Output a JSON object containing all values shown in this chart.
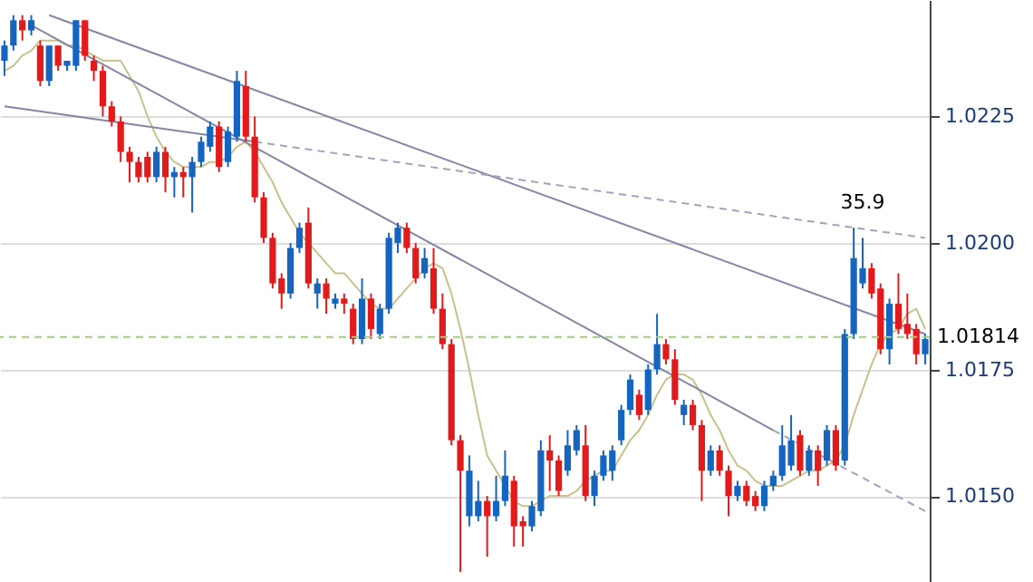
{
  "chart_data": {
    "type": "candlestick",
    "categories": [
      null,
      null,
      null,
      null,
      null,
      null,
      null,
      null,
      null,
      null,
      null,
      null,
      null,
      null,
      null,
      null,
      null,
      null,
      null,
      null,
      null,
      null,
      null,
      null,
      null,
      null,
      null,
      null,
      null,
      null,
      null,
      null,
      null,
      null,
      null,
      null,
      null,
      null,
      null,
      null,
      null,
      null,
      null,
      null,
      null,
      null,
      null,
      null,
      null,
      null,
      null,
      null,
      null,
      null,
      null,
      null,
      null,
      null,
      null,
      null,
      null,
      null,
      null,
      null,
      null,
      null,
      null,
      null,
      null,
      null,
      null,
      null,
      null,
      null,
      null,
      null,
      null,
      null,
      null,
      null,
      null,
      null,
      null,
      null,
      null,
      null,
      null,
      null,
      null,
      null,
      null,
      null,
      null,
      null,
      null,
      null,
      null,
      null,
      null,
      null,
      null,
      null,
      null,
      null
    ],
    "ohlc": [
      [
        1.0236,
        1.024,
        1.0233,
        1.0239
      ],
      [
        1.0239,
        1.0245,
        1.0238,
        1.0244
      ],
      [
        1.0244,
        1.0245,
        1.024,
        1.0242
      ],
      [
        1.0242,
        1.0245,
        1.0241,
        1.0244
      ],
      [
        1.0239,
        1.024,
        1.0231,
        1.0232
      ],
      [
        1.0232,
        1.0239,
        1.0231,
        1.0239
      ],
      [
        1.0239,
        1.0239,
        1.0234,
        1.0235
      ],
      [
        1.0235,
        1.0236,
        1.0234,
        1.0236
      ],
      [
        1.0235,
        1.0244,
        1.0234,
        1.0244
      ],
      [
        1.0244,
        1.0244,
        1.0236,
        1.0237
      ],
      [
        1.0236,
        1.0237,
        1.0232,
        1.0234
      ],
      [
        1.0234,
        1.0235,
        1.0225,
        1.0227
      ],
      [
        1.0227,
        1.0228,
        1.0223,
        1.0224
      ],
      [
        1.0224,
        1.0225,
        1.0216,
        1.0218
      ],
      [
        1.0218,
        1.0219,
        1.0212,
        1.0216
      ],
      [
        1.0216,
        1.0217,
        1.0212,
        1.0213
      ],
      [
        1.0217,
        1.0218,
        1.0212,
        1.0213
      ],
      [
        1.0213,
        1.0219,
        1.0212,
        1.0218
      ],
      [
        1.0218,
        1.0219,
        1.021,
        1.0213
      ],
      [
        1.0213,
        1.0215,
        1.0209,
        1.0214
      ],
      [
        1.0214,
        1.0215,
        1.0209,
        1.0213
      ],
      [
        1.0213,
        1.0217,
        1.0206,
        1.0216
      ],
      [
        1.0216,
        1.0221,
        1.0215,
        1.022
      ],
      [
        1.0219,
        1.0224,
        1.0218,
        1.0223
      ],
      [
        1.0223,
        1.0224,
        1.0214,
        1.0215
      ],
      [
        1.0216,
        1.0223,
        1.0215,
        1.0222
      ],
      [
        1.0221,
        1.0234,
        1.022,
        1.0232
      ],
      [
        1.0231,
        1.0234,
        1.022,
        1.0221
      ],
      [
        1.0221,
        1.0225,
        1.0208,
        1.0209
      ],
      [
        1.0209,
        1.021,
        1.02,
        1.0201
      ],
      [
        1.0201,
        1.0202,
        1.0191,
        1.0192
      ],
      [
        1.0193,
        1.0194,
        1.0187,
        1.019
      ],
      [
        1.019,
        1.02,
        1.0189,
        1.0199
      ],
      [
        1.0199,
        1.0204,
        1.0198,
        1.0203
      ],
      [
        1.0204,
        1.0207,
        1.0191,
        1.0192
      ],
      [
        1.019,
        1.0193,
        1.0187,
        1.0192
      ],
      [
        1.0192,
        1.0193,
        1.0186,
        1.0189
      ],
      [
        1.0188,
        1.019,
        1.0187,
        1.0189
      ],
      [
        1.0189,
        1.019,
        1.0186,
        1.0188
      ],
      [
        1.0187,
        1.0188,
        1.018,
        1.0181
      ],
      [
        1.0181,
        1.0193,
        1.018,
        1.0189
      ],
      [
        1.0189,
        1.019,
        1.0181,
        1.0183
      ],
      [
        1.0182,
        1.0188,
        1.0181,
        1.0187
      ],
      [
        1.0187,
        1.0202,
        1.0186,
        1.0201
      ],
      [
        1.02,
        1.0204,
        1.0198,
        1.0203
      ],
      [
        1.0203,
        1.0204,
        1.0198,
        1.0199
      ],
      [
        1.0199,
        1.02,
        1.0192,
        1.0193
      ],
      [
        1.0194,
        1.0199,
        1.0193,
        1.0197
      ],
      [
        1.0195,
        1.0199,
        1.0186,
        1.0187
      ],
      [
        1.0187,
        1.019,
        1.0179,
        1.018
      ],
      [
        1.018,
        1.0181,
        1.016,
        1.0161
      ],
      [
        1.0161,
        1.0162,
        1.0135,
        1.0155
      ],
      [
        1.0146,
        1.0158,
        1.0144,
        1.0155
      ],
      [
        1.0146,
        1.0153,
        1.0145,
        1.0149
      ],
      [
        1.0149,
        1.015,
        1.0138,
        1.0146
      ],
      [
        1.0146,
        1.0154,
        1.0145,
        1.0149
      ],
      [
        1.0149,
        1.0159,
        1.0148,
        1.0154
      ],
      [
        1.0153,
        1.0154,
        1.014,
        1.0144
      ],
      [
        1.0145,
        1.0146,
        1.014,
        1.0144
      ],
      [
        1.0144,
        1.0149,
        1.0143,
        1.0148
      ],
      [
        1.0147,
        1.0161,
        1.0146,
        1.0159
      ],
      [
        1.0159,
        1.0162,
        1.0151,
        1.0157
      ],
      [
        1.0157,
        1.0158,
        1.015,
        1.0151
      ],
      [
        1.0155,
        1.0163,
        1.0154,
        1.016
      ],
      [
        1.0159,
        1.0164,
        1.0158,
        1.0163
      ],
      [
        1.016,
        1.0164,
        1.0149,
        1.015
      ],
      [
        1.015,
        1.0155,
        1.0148,
        1.0154
      ],
      [
        1.0154,
        1.0159,
        1.0153,
        1.0158
      ],
      [
        1.0155,
        1.016,
        1.0153,
        1.0159
      ],
      [
        1.0161,
        1.0168,
        1.016,
        1.0167
      ],
      [
        1.0167,
        1.0174,
        1.0166,
        1.0173
      ],
      [
        1.017,
        1.0171,
        1.0165,
        1.0166
      ],
      [
        1.0167,
        1.0176,
        1.0166,
        1.0175
      ],
      [
        1.0175,
        1.0186,
        1.0174,
        1.018
      ],
      [
        1.018,
        1.0181,
        1.0176,
        1.0177
      ],
      [
        1.0177,
        1.0179,
        1.0168,
        1.0169
      ],
      [
        1.0166,
        1.0169,
        1.0164,
        1.0168
      ],
      [
        1.0168,
        1.0169,
        1.0163,
        1.0164
      ],
      [
        1.0164,
        1.0165,
        1.0149,
        1.0155
      ],
      [
        1.0155,
        1.016,
        1.0154,
        1.0159
      ],
      [
        1.0159,
        1.016,
        1.0154,
        1.0155
      ],
      [
        1.0155,
        1.0156,
        1.0146,
        1.015
      ],
      [
        1.015,
        1.0153,
        1.0149,
        1.0152
      ],
      [
        1.0152,
        1.0153,
        1.0148,
        1.0149
      ],
      [
        1.015,
        1.0151,
        1.0147,
        1.0148
      ],
      [
        1.0148,
        1.0153,
        1.0147,
        1.0152
      ],
      [
        1.0152,
        1.0155,
        1.0151,
        1.0154
      ],
      [
        1.0154,
        1.0164,
        1.0153,
        1.016
      ],
      [
        1.0156,
        1.0166,
        1.0155,
        1.0161
      ],
      [
        1.0162,
        1.0163,
        1.0154,
        1.0155
      ],
      [
        1.0155,
        1.016,
        1.0154,
        1.0159
      ],
      [
        1.0159,
        1.016,
        1.0152,
        1.0155
      ],
      [
        1.0157,
        1.0164,
        1.0156,
        1.0163
      ],
      [
        1.0163,
        1.0164,
        1.0155,
        1.0156
      ],
      [
        1.0157,
        1.0183,
        1.0156,
        1.0182
      ],
      [
        1.0182,
        1.0203,
        1.0181,
        1.0197
      ],
      [
        1.0192,
        1.0201,
        1.0191,
        1.0195
      ],
      [
        1.0195,
        1.0196,
        1.0189,
        1.019
      ],
      [
        1.0191,
        1.0192,
        1.0178,
        1.0179
      ],
      [
        1.0179,
        1.0189,
        1.0176,
        1.0188
      ],
      [
        1.0188,
        1.0194,
        1.0182,
        1.0183
      ],
      [
        1.0184,
        1.019,
        1.0181,
        1.0182
      ],
      [
        1.0183,
        1.0184,
        1.0176,
        1.0178
      ],
      [
        1.0178,
        1.0182,
        1.0176,
        1.0181
      ]
    ],
    "colors": [
      "#1565c0",
      "#1565c0",
      "#e31a1c",
      "#1565c0",
      "#e31a1c",
      "#1565c0",
      "#e31a1c",
      "#1565c0",
      "#1565c0",
      "#e31a1c",
      "#e31a1c",
      "#e31a1c",
      "#e31a1c",
      "#e31a1c",
      "#e31a1c",
      "#e31a1c",
      "#e31a1c",
      "#1565c0",
      "#e31a1c",
      "#1565c0",
      "#e31a1c",
      "#1565c0",
      "#1565c0",
      "#1565c0",
      "#e31a1c",
      "#1565c0",
      "#1565c0",
      "#e31a1c",
      "#e31a1c",
      "#e31a1c",
      "#e31a1c",
      "#e31a1c",
      "#1565c0",
      "#1565c0",
      "#e31a1c",
      "#1565c0",
      "#e31a1c",
      "#1565c0",
      "#e31a1c",
      "#e31a1c",
      "#1565c0",
      "#e31a1c",
      "#1565c0",
      "#1565c0",
      "#1565c0",
      "#e31a1c",
      "#e31a1c",
      "#1565c0",
      "#e31a1c",
      "#e31a1c",
      "#e31a1c",
      "#e31a1c",
      "#1565c0",
      "#1565c0",
      "#e31a1c",
      "#1565c0",
      "#1565c0",
      "#e31a1c",
      "#e31a1c",
      "#1565c0",
      "#1565c0",
      "#e31a1c",
      "#e31a1c",
      "#1565c0",
      "#1565c0",
      "#e31a1c",
      "#1565c0",
      "#1565c0",
      "#1565c0",
      "#1565c0",
      "#1565c0",
      "#e31a1c",
      "#1565c0",
      "#1565c0",
      "#e31a1c",
      "#e31a1c",
      "#1565c0",
      "#e31a1c",
      "#e31a1c",
      "#1565c0",
      "#e31a1c",
      "#e31a1c",
      "#1565c0",
      "#e31a1c",
      "#e31a1c",
      "#1565c0",
      "#1565c0",
      "#1565c0",
      "#1565c0",
      "#e31a1c",
      "#1565c0",
      "#e31a1c",
      "#1565c0",
      "#e31a1c",
      "#1565c0",
      "#1565c0",
      "#1565c0",
      "#e31a1c",
      "#e31a1c",
      "#1565c0",
      "#e31a1c",
      "#e31a1c",
      "#e31a1c",
      "#1565c0"
    ],
    "series": [
      {
        "type": "line",
        "color": "#c9c08c",
        "line_style": "solid",
        "values": [
          1.0234,
          1.0235,
          1.0237,
          1.0238,
          1.024,
          1.024,
          1.024,
          1.0239,
          1.0239,
          1.0238,
          1.0237,
          1.0236,
          1.0236,
          1.0236,
          1.0233,
          1.023,
          1.0225,
          1.0221,
          1.0218,
          1.0216,
          1.0215,
          1.0215,
          1.0215,
          1.0216,
          1.0216,
          1.0217,
          1.0219,
          1.022,
          1.0218,
          1.0215,
          1.0212,
          1.0208,
          1.0205,
          1.0202,
          1.02,
          1.0198,
          1.0196,
          1.0194,
          1.0194,
          1.0192,
          1.019,
          1.0188,
          1.0187,
          1.0187,
          1.0189,
          1.0191,
          1.0193,
          1.0195,
          1.0196,
          1.0195,
          1.019,
          1.0183,
          1.0175,
          1.0166,
          1.0158,
          1.0155,
          1.0152,
          1.0149,
          1.0148,
          1.0148,
          1.0149,
          1.015,
          1.015,
          1.015,
          1.0151,
          1.0153,
          1.0154,
          1.0155,
          1.0155,
          1.0158,
          1.0161,
          1.0163,
          1.0166,
          1.017,
          1.0173,
          1.0174,
          1.0174,
          1.0173,
          1.017,
          1.0166,
          1.0163,
          1.0159,
          1.0156,
          1.0155,
          1.0153,
          1.0152,
          1.0152,
          1.0152,
          1.0153,
          1.0154,
          1.0155,
          1.0155,
          1.0156,
          1.0157,
          1.016,
          1.0166,
          1.0171,
          1.0176,
          1.018,
          1.0182,
          1.0183,
          1.0186,
          1.0187,
          1.0183
        ]
      },
      {
        "type": "line",
        "color": "#8585a6",
        "line_style": "solid",
        "values": [
          null,
          null,
          null,
          null,
          null,
          1.0245,
          null,
          null,
          null,
          null,
          null,
          null,
          null,
          null,
          null,
          null,
          null,
          null,
          null,
          null,
          null,
          null,
          null,
          null,
          null,
          null,
          null,
          null,
          null,
          null,
          null,
          null,
          null,
          null,
          null,
          null,
          null,
          null,
          null,
          null,
          null,
          null,
          null,
          null,
          null,
          null,
          null,
          null,
          null,
          null,
          null,
          null,
          null,
          null,
          null,
          null,
          null,
          null,
          null,
          null,
          null,
          null,
          null,
          null,
          null,
          null,
          null,
          null,
          null,
          null,
          null,
          null,
          null,
          null,
          null,
          null,
          null,
          null,
          null,
          null,
          null,
          null,
          null,
          null,
          null,
          null,
          null,
          null,
          null,
          null,
          null,
          null,
          null,
          null,
          null,
          null,
          null,
          null,
          null,
          null,
          null,
          null,
          null,
          1.0182
        ]
      },
      {
        "type": "line",
        "color": "#8585a6",
        "line_style": "solid",
        "values": [
          1.0227,
          null,
          null,
          null,
          null,
          null,
          null,
          null,
          null,
          null,
          null,
          null,
          null,
          null,
          null,
          null,
          null,
          null,
          null,
          null,
          null,
          null,
          null,
          null,
          null,
          null,
          null,
          null,
          1.022,
          null,
          null,
          null,
          null,
          null,
          null,
          null,
          null,
          null,
          null,
          null,
          null,
          null,
          null,
          null,
          null,
          null,
          null,
          null,
          null,
          null,
          null,
          null,
          null,
          null,
          null,
          null,
          null,
          null,
          null,
          null,
          null,
          null,
          null,
          null,
          null,
          null,
          null,
          null,
          null,
          null,
          null,
          null,
          null,
          null,
          null,
          null,
          null,
          null,
          null,
          null,
          null,
          null,
          null,
          null,
          null,
          null,
          null,
          null,
          null,
          null,
          null,
          null,
          null,
          null,
          null,
          null,
          null,
          null,
          null,
          null,
          null,
          null,
          null,
          null
        ]
      },
      {
        "type": "line",
        "color": "#a3a3bd",
        "line_style": "dashed",
        "values": [
          null,
          null,
          null,
          null,
          null,
          null,
          null,
          null,
          null,
          null,
          null,
          null,
          null,
          null,
          null,
          null,
          null,
          null,
          null,
          null,
          null,
          null,
          null,
          null,
          null,
          null,
          null,
          null,
          1.022,
          null,
          null,
          null,
          null,
          null,
          null,
          null,
          null,
          null,
          null,
          null,
          null,
          null,
          null,
          null,
          null,
          null,
          null,
          null,
          null,
          null,
          null,
          null,
          null,
          null,
          null,
          null,
          null,
          null,
          null,
          null,
          null,
          null,
          null,
          null,
          null,
          null,
          null,
          null,
          null,
          null,
          null,
          null,
          null,
          null,
          null,
          null,
          null,
          null,
          null,
          null,
          null,
          null,
          null,
          null,
          null,
          null,
          null,
          null,
          null,
          null,
          null,
          null,
          null,
          null,
          null,
          null,
          null,
          null,
          null,
          null,
          null,
          null,
          null,
          1.0201
        ]
      },
      {
        "type": "line",
        "color": "#8585a6",
        "line_style": "solid",
        "values": [
          null,
          null,
          null,
          1.0243,
          null,
          null,
          null,
          null,
          null,
          null,
          null,
          null,
          null,
          null,
          null,
          null,
          null,
          null,
          null,
          null,
          null,
          null,
          null,
          null,
          null,
          null,
          null,
          null,
          null,
          null,
          null,
          null,
          null,
          null,
          null,
          null,
          null,
          null,
          null,
          null,
          null,
          null,
          null,
          null,
          null,
          null,
          null,
          null,
          null,
          null,
          null,
          null,
          null,
          null,
          null,
          null,
          null,
          null,
          null,
          null,
          null,
          null,
          null,
          null,
          null,
          null,
          null,
          null,
          null,
          null,
          null,
          null,
          null,
          null,
          null,
          null,
          null,
          null,
          null,
          null,
          null,
          null,
          null,
          null,
          null,
          null,
          1.0163,
          null,
          null,
          null,
          null,
          null,
          null,
          null,
          null,
          null,
          null,
          null,
          null,
          null,
          null,
          null,
          null,
          null
        ]
      },
      {
        "type": "line",
        "color": "#a3a3bd",
        "line_style": "dashed",
        "values": [
          null,
          null,
          null,
          null,
          null,
          null,
          null,
          null,
          null,
          null,
          null,
          null,
          null,
          null,
          null,
          null,
          null,
          null,
          null,
          null,
          null,
          null,
          null,
          null,
          null,
          null,
          null,
          null,
          null,
          null,
          null,
          null,
          null,
          null,
          null,
          null,
          null,
          null,
          null,
          null,
          null,
          null,
          null,
          null,
          null,
          null,
          null,
          null,
          null,
          null,
          null,
          null,
          null,
          null,
          null,
          null,
          null,
          null,
          null,
          null,
          null,
          null,
          null,
          null,
          null,
          null,
          null,
          null,
          null,
          null,
          null,
          null,
          null,
          null,
          null,
          null,
          null,
          null,
          null,
          null,
          null,
          null,
          null,
          null,
          null,
          null,
          1.0163,
          null,
          null,
          null,
          null,
          null,
          null,
          null,
          null,
          null,
          null,
          null,
          null,
          null,
          null,
          null,
          null,
          1.0147
        ]
      }
    ],
    "ylim": [
      1.0133,
      1.0248
    ],
    "yticks": [
      {
        "value": 1.015,
        "label": "1.0150"
      },
      {
        "value": 1.0175,
        "label": "1.0175"
      },
      {
        "value": 1.02,
        "label": "1.0200"
      },
      {
        "value": 1.0225,
        "label": "1.0225"
      }
    ],
    "tick_labels": "y",
    "grid": "y",
    "ref_lines": [
      {
        "axis": "y",
        "value": 1.01814,
        "label": "1.01814",
        "color": "#9fd07a",
        "line_style": "dashed"
      }
    ],
    "annotations": [
      {
        "text": "35.9",
        "y": 1.0201
      }
    ]
  }
}
